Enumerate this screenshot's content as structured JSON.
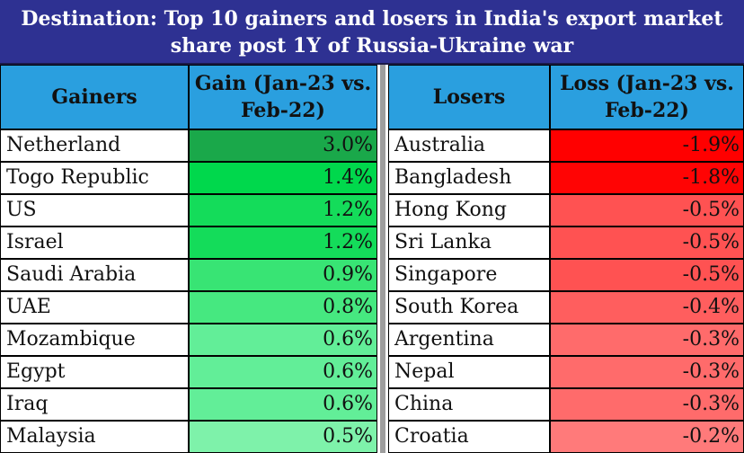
{
  "title": "Destination: Top 10 gainers and losers in India's export market share post 1Y of Russia-Ukraine war",
  "chart_data": {
    "type": "table",
    "title": "Destination: Top 10 gainers and losers in India's export market share post 1Y of Russia-Ukraine war",
    "gainers": {
      "header_name": "Gainers",
      "header_value": "Gain (Jan-23 vs. Feb-22)",
      "rows": [
        {
          "name": "Netherland",
          "value": 3.0,
          "label": "3.0%",
          "color": "#1aa84a"
        },
        {
          "name": "Togo Republic",
          "value": 1.4,
          "label": "1.4%",
          "color": "#00d84c"
        },
        {
          "name": "US",
          "value": 1.2,
          "label": "1.2%",
          "color": "#14dc5a"
        },
        {
          "name": "Israel",
          "value": 1.2,
          "label": "1.2%",
          "color": "#14dc5a"
        },
        {
          "name": "Saudi Arabia",
          "value": 0.9,
          "label": "0.9%",
          "color": "#38e474"
        },
        {
          "name": "UAE",
          "value": 0.8,
          "label": "0.8%",
          "color": "#46e880"
        },
        {
          "name": "Mozambique",
          "value": 0.6,
          "label": "0.6%",
          "color": "#62ee98"
        },
        {
          "name": "Egypt",
          "value": 0.6,
          "label": "0.6%",
          "color": "#62ee98"
        },
        {
          "name": "Iraq",
          "value": 0.6,
          "label": "0.6%",
          "color": "#62ee98"
        },
        {
          "name": "Malaysia",
          "value": 0.5,
          "label": "0.5%",
          "color": "#7ef2aa"
        }
      ]
    },
    "losers": {
      "header_name": "Losers",
      "header_value": "Loss (Jan-23 vs. Feb-22)",
      "rows": [
        {
          "name": "Australia",
          "value": -1.9,
          "label": "-1.9%",
          "color": "#ff0000"
        },
        {
          "name": "Bangladesh",
          "value": -1.8,
          "label": "-1.8%",
          "color": "#ff0404"
        },
        {
          "name": "Hong Kong",
          "value": -0.5,
          "label": "-0.5%",
          "color": "#ff5252"
        },
        {
          "name": "Sri Lanka",
          "value": -0.5,
          "label": "-0.5%",
          "color": "#ff5252"
        },
        {
          "name": "Singapore",
          "value": -0.5,
          "label": "-0.5%",
          "color": "#ff5252"
        },
        {
          "name": "South Korea",
          "value": -0.4,
          "label": "-0.4%",
          "color": "#ff5e5e"
        },
        {
          "name": "Argentina",
          "value": -0.3,
          "label": "-0.3%",
          "color": "#ff6b6b"
        },
        {
          "name": "Nepal",
          "value": -0.3,
          "label": "-0.3%",
          "color": "#ff6b6b"
        },
        {
          "name": "China",
          "value": -0.3,
          "label": "-0.3%",
          "color": "#ff6b6b"
        },
        {
          "name": "Croatia",
          "value": -0.2,
          "label": "-0.2%",
          "color": "#ff7a7a"
        }
      ]
    }
  }
}
